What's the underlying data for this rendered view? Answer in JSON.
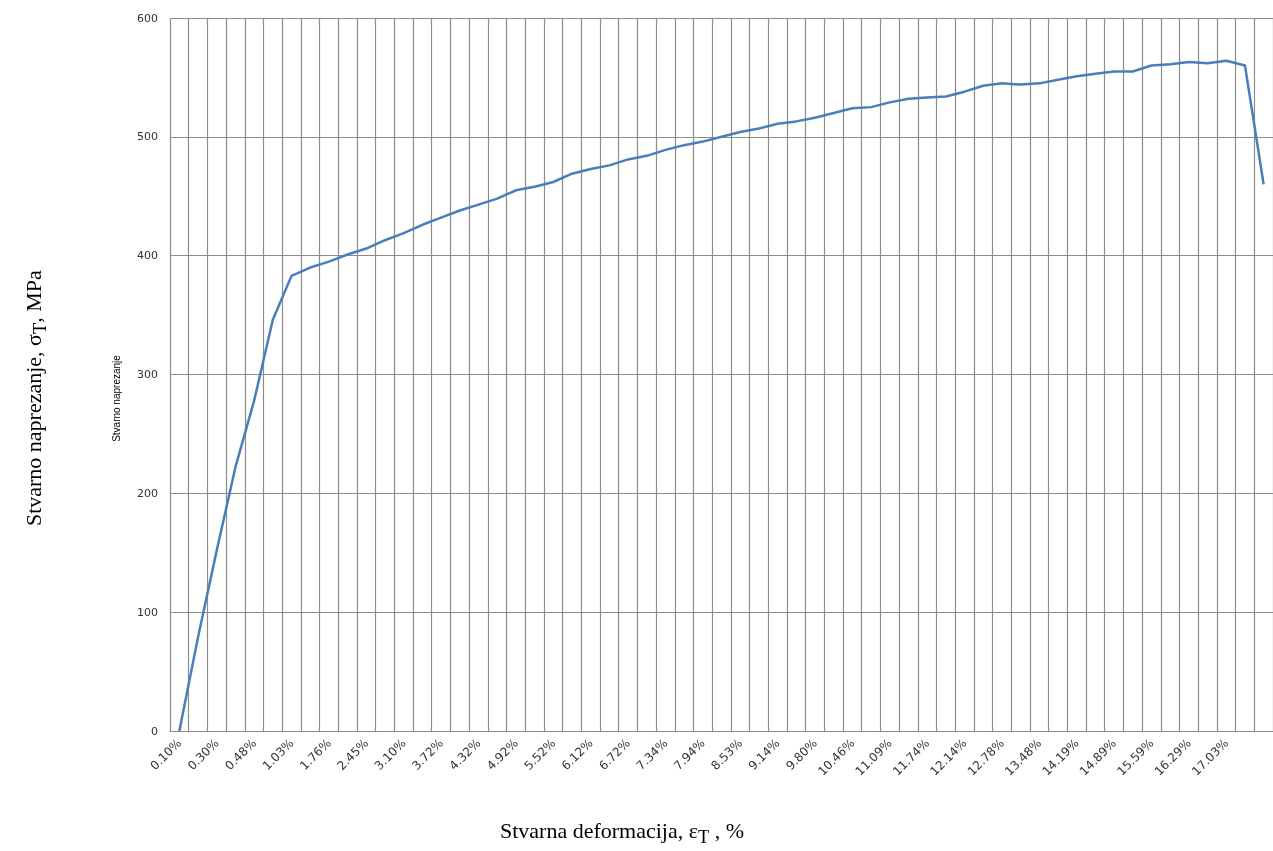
{
  "chart_data": {
    "type": "line",
    "xlabel": "Stvarna deformacija, ε$_{T}$ , %",
    "ylabel": "Stvarno naprezanje, σ$_{T}$, MPa",
    "annotations": [
      "Stvarno naprezanje"
    ],
    "categories": [
      "0.10%",
      null,
      "0.30%",
      null,
      "0.48%",
      null,
      "1.03%",
      null,
      "1.76%",
      null,
      "2.45%",
      null,
      "3.10%",
      null,
      "3.72%",
      null,
      "4.32%",
      null,
      "4.92%",
      null,
      "5.52%",
      null,
      "6.12%",
      null,
      "6.72%",
      null,
      "7.34%",
      null,
      "7.94%",
      null,
      "8.53%",
      null,
      "9.14%",
      null,
      "9.80%",
      null,
      "10.46%",
      null,
      "11.09%",
      null,
      "11.74%",
      null,
      "12.14%",
      null,
      "12.78%",
      null,
      "13.48%",
      null,
      "14.19%",
      null,
      "14.89%",
      null,
      "15.59%",
      null,
      "16.29%",
      null,
      "17.03%",
      null,
      null
    ],
    "series": [
      {
        "color": "#4a7ebb",
        "values": [
          0,
          79,
          152,
          222,
          278,
          346,
          383,
          390,
          395,
          401,
          406,
          413,
          419,
          426,
          432,
          438,
          443,
          448,
          455,
          458,
          462,
          469,
          473,
          476,
          481,
          484,
          489,
          493,
          496,
          500,
          504,
          507,
          511,
          513,
          516,
          520,
          524,
          525,
          529,
          532,
          533,
          534,
          538,
          543,
          545,
          544,
          545,
          548,
          551,
          553,
          555,
          555,
          560,
          561,
          563,
          562,
          564,
          560,
          460
        ]
      }
    ],
    "ylim": [
      0,
      600
    ],
    "yticks": [
      0,
      100,
      200,
      300,
      400,
      500,
      600
    ],
    "grid": true,
    "marker": "none",
    "line_style": "solid"
  }
}
